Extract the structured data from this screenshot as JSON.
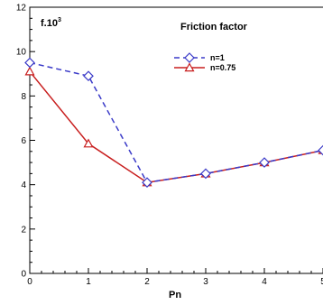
{
  "chart_data": {
    "type": "line",
    "title": "Friction factor",
    "ylabel": "f.10",
    "ylabel_exponent": "3",
    "xlabel": "Pn",
    "xlim": [
      0,
      5
    ],
    "ylim": [
      0,
      12
    ],
    "xticks": [
      "0",
      "1",
      "2",
      "3",
      "4",
      "5"
    ],
    "yticks": [
      "0",
      "2",
      "4",
      "6",
      "8",
      "10",
      "12"
    ],
    "grid": false,
    "legend_position": "top-right",
    "series": [
      {
        "name": "n=1",
        "color": "#3a3ac8",
        "line_style": "dashed",
        "marker": "diamond",
        "x": [
          0,
          1,
          2,
          3,
          4,
          5
        ],
        "y": [
          9.5,
          8.9,
          4.1,
          4.5,
          5.0,
          5.55
        ]
      },
      {
        "name": "n=0.75",
        "color": "#c81e1e",
        "line_style": "solid",
        "marker": "triangle",
        "x": [
          0,
          1,
          2,
          3,
          4,
          5
        ],
        "y": [
          9.1,
          5.85,
          4.1,
          4.5,
          5.0,
          5.55
        ]
      }
    ]
  }
}
